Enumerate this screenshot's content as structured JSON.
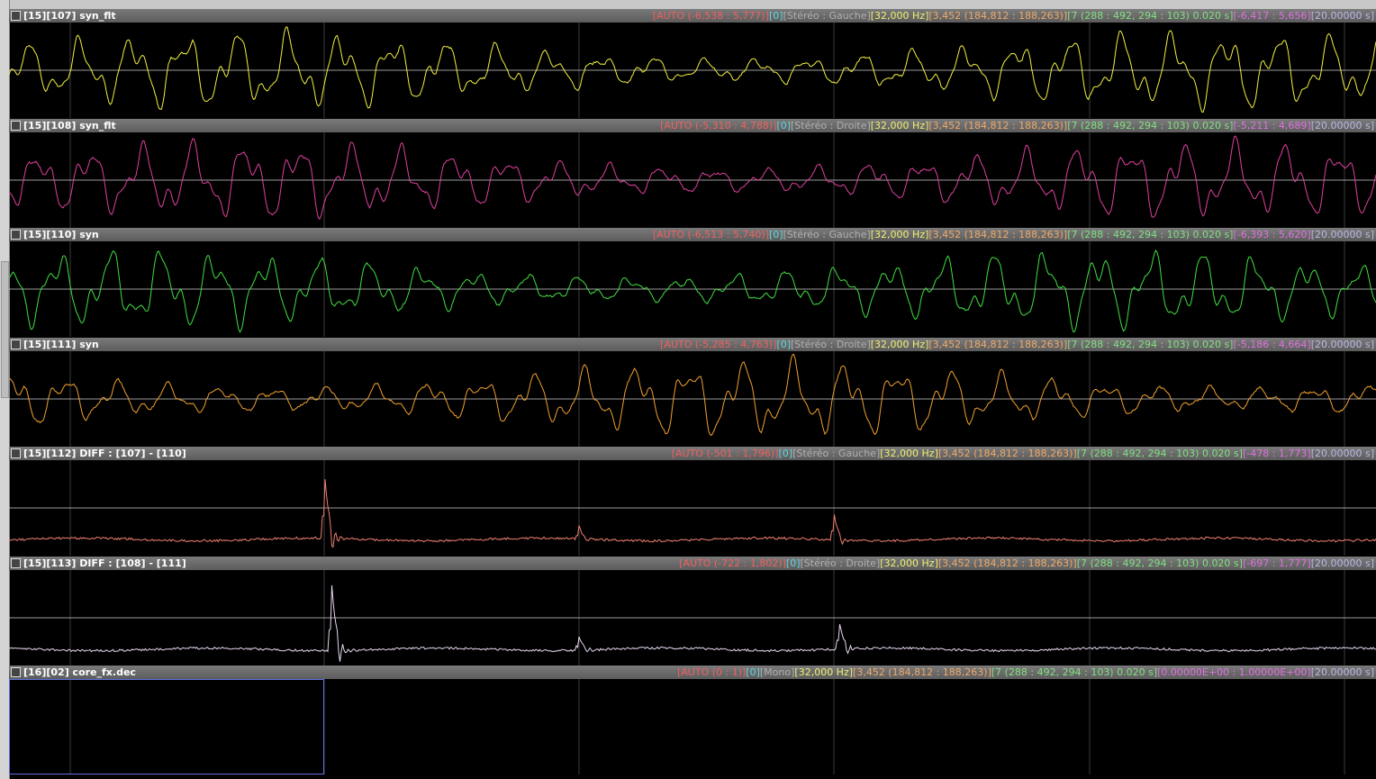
{
  "field_colors": [
    "#f06060",
    "#5cd6e0",
    "#b0b0b0",
    "#f0f070",
    "#f0a868",
    "#80e080",
    "#e070e0",
    "#b8b8e8"
  ],
  "tracks": [
    {
      "title": "[15][107] syn_flt",
      "color": "#f0f040",
      "kind": "signal",
      "fields": [
        "[AUTO (-6,538 : 5,777)]",
        "[0]",
        "[Stéréo : Gauche]",
        "[32,000 Hz]",
        "[3,452 (184,812 : 188,263)]",
        "[7 (288 : 492, 294 : 103) 0.020 s]",
        "[-6,417 : 5,656]",
        "[20.00000 s]"
      ]
    },
    {
      "title": "[15][108] syn_flt",
      "color": "#e040a0",
      "kind": "signal",
      "fields": [
        "[AUTO (-5,310 : 4,788)]",
        "[0]",
        "[Stéréo : Droite]",
        "[32,000 Hz]",
        "[3,452 (184,812 : 188,263)]",
        "[7 (288 : 492, 294 : 103) 0.020 s]",
        "[-5,211 : 4,689]",
        "[20.00000 s]"
      ]
    },
    {
      "title": "[15][110] syn",
      "color": "#40e040",
      "kind": "signal",
      "fields": [
        "[AUTO (-6,513 : 5,740)]",
        "[0]",
        "[Stéréo : Gauche]",
        "[32,000 Hz]",
        "[3,452 (184,812 : 188,263)]",
        "[7 (288 : 492, 294 : 103) 0.020 s]",
        "[-6,393 : 5,620]",
        "[20.00000 s]"
      ]
    },
    {
      "title": "[15][111] syn",
      "color": "#f0a030",
      "kind": "signal",
      "fields": [
        "[AUTO (-5,285 : 4,763)]",
        "[0]",
        "[Stéréo : Droite]",
        "[32,000 Hz]",
        "[3,452 (184,812 : 188,263)]",
        "[7 (288 : 492, 294 : 103) 0.020 s]",
        "[-5,186 : 4,664]",
        "[20.00000 s]"
      ]
    },
    {
      "title": "[15][112] DIFF : [107] - [110]",
      "color": "#f08070",
      "kind": "diff",
      "fields": [
        "[AUTO (-501 : 1,796)]",
        "[0]",
        "[Stéréo : Gauche]",
        "[32,000 Hz]",
        "[3,452 (184,812 : 188,263)]",
        "[7 (288 : 492, 294 : 103) 0.020 s]",
        "[-478 : 1,773]",
        "[20.00000 s]"
      ]
    },
    {
      "title": "[15][113] DIFF : [108] - [111]",
      "color": "#e8d8f0",
      "kind": "diff",
      "fields": [
        "[AUTO (-722 : 1,802)]",
        "[0]",
        "[Stéréo : Droite]",
        "[32,000 Hz]",
        "[3,452 (184,812 : 188,263)]",
        "[7 (288 : 492, 294 : 103) 0.020 s]",
        "[-697 : 1,777]",
        "[20.00000 s]"
      ]
    },
    {
      "title": "[16][02] core_fx.dec",
      "color": "#6070e0",
      "kind": "gate",
      "fields": [
        "[AUTO (0 : 1)]",
        "[0]",
        "[Mono]",
        "[32,000 Hz]",
        "[3,452 (184,812 : 188,263)]",
        "[7 (288 : 492, 294 : 103) 0.020 s]",
        "[0.00000E+00 : 1.00000E+00]",
        "[20.00000 s]"
      ]
    }
  ]
}
